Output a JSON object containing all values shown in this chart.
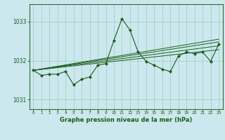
{
  "title": "Graphe pression niveau de la mer (hPa)",
  "bg_color": "#cce8ee",
  "grid_color": "#99ccbb",
  "line_color": "#1a5c1a",
  "xlim": [
    -0.5,
    23.5
  ],
  "ylim": [
    1030.75,
    1033.45
  ],
  "yticks": [
    1031,
    1032,
    1033
  ],
  "xticks": [
    0,
    1,
    2,
    3,
    4,
    5,
    6,
    7,
    8,
    9,
    10,
    11,
    12,
    13,
    14,
    15,
    16,
    17,
    18,
    19,
    20,
    21,
    22,
    23
  ],
  "main_series": [
    1031.75,
    1031.62,
    1031.65,
    1031.65,
    1031.72,
    1031.38,
    1031.52,
    1031.58,
    1031.88,
    1031.92,
    1032.52,
    1033.08,
    1032.78,
    1032.22,
    1031.98,
    1031.88,
    1031.78,
    1031.72,
    1032.12,
    1032.22,
    1032.18,
    1032.22,
    1031.98,
    1032.42
  ],
  "trend_lines": [
    {
      "x0": 0,
      "y0": 1031.75,
      "x1": 23,
      "y1": 1032.28
    },
    {
      "x0": 0,
      "y0": 1031.75,
      "x1": 23,
      "y1": 1032.38
    },
    {
      "x0": 0,
      "y0": 1031.75,
      "x1": 23,
      "y1": 1032.48
    },
    {
      "x0": 0,
      "y0": 1031.75,
      "x1": 23,
      "y1": 1032.55
    }
  ]
}
